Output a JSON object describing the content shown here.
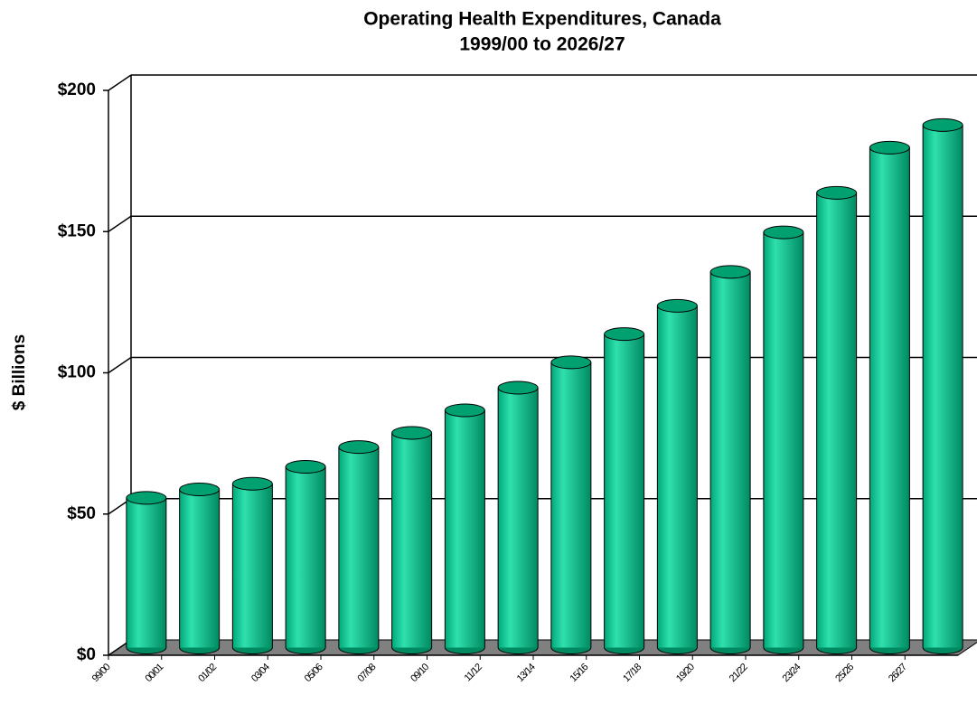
{
  "chart_data": {
    "type": "bar3d",
    "title": "Operating Health Expenditures, Canada",
    "subtitle": "1999/00 to 2026/27",
    "y_label": "$ Billions",
    "categories": [
      "99/00",
      "00/01",
      "01/02",
      "03/04",
      "05/06",
      "07/08",
      "09/10",
      "11/12",
      "13/14",
      "15/16",
      "17/18",
      "19/20",
      "21/22",
      "23/24",
      "25/26",
      "26/27"
    ],
    "values": [
      53,
      56,
      58,
      64,
      71,
      76,
      84,
      92,
      101,
      111,
      121,
      133,
      147,
      161,
      177,
      185
    ],
    "color": "#00c08b",
    "ylim": [
      0,
      200
    ],
    "yticks": [
      {
        "value": 0,
        "label": "$0"
      },
      {
        "value": 50,
        "label": "$50"
      },
      {
        "value": 100,
        "label": "$100"
      },
      {
        "value": 150,
        "label": "$150"
      },
      {
        "value": 200,
        "label": "$200"
      }
    ],
    "grid": true
  }
}
